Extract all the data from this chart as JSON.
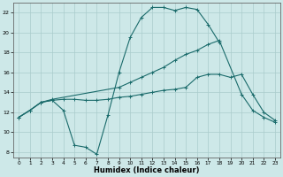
{
  "xlabel": "Humidex (Indice chaleur)",
  "background_color": "#cde8e8",
  "grid_color": "#b0d0d0",
  "line_color": "#1a6b6b",
  "xlim": [
    -0.5,
    23.5
  ],
  "ylim": [
    7.5,
    23.0
  ],
  "yticks": [
    8,
    10,
    12,
    14,
    16,
    18,
    20,
    22
  ],
  "xticks": [
    0,
    1,
    2,
    3,
    4,
    5,
    6,
    7,
    8,
    9,
    10,
    11,
    12,
    13,
    14,
    15,
    16,
    17,
    18,
    19,
    20,
    21,
    22,
    23
  ],
  "line1_x": [
    0,
    1,
    2,
    3,
    4,
    5,
    6,
    7,
    8,
    9,
    10,
    11,
    12,
    13,
    14,
    15,
    16,
    17,
    18
  ],
  "line1_y": [
    11.5,
    12.2,
    13.0,
    13.2,
    12.2,
    8.7,
    8.5,
    7.8,
    11.7,
    16.0,
    19.5,
    21.5,
    22.5,
    22.5,
    22.2,
    22.5,
    22.3,
    20.8,
    19.0
  ],
  "line2_x": [
    0,
    1,
    2,
    3,
    9,
    10,
    11,
    12,
    13,
    14,
    15,
    16,
    17,
    18,
    20,
    21,
    22,
    23
  ],
  "line2_y": [
    11.5,
    12.2,
    13.0,
    13.3,
    14.5,
    15.0,
    15.5,
    16.0,
    16.5,
    17.2,
    17.8,
    18.2,
    18.8,
    19.2,
    13.8,
    12.2,
    11.5,
    11.0
  ],
  "line3_x": [
    0,
    1,
    2,
    3,
    4,
    5,
    6,
    7,
    8,
    9,
    10,
    11,
    12,
    13,
    14,
    15,
    16,
    17,
    18,
    19,
    20,
    21,
    22,
    23
  ],
  "line3_y": [
    11.5,
    12.2,
    13.0,
    13.2,
    13.3,
    13.3,
    13.2,
    13.2,
    13.3,
    13.5,
    13.6,
    13.8,
    14.0,
    14.2,
    14.3,
    14.5,
    15.5,
    15.8,
    15.8,
    15.5,
    15.8,
    13.8,
    12.0,
    11.2
  ],
  "figsize": [
    3.2,
    2.0
  ],
  "dpi": 100
}
